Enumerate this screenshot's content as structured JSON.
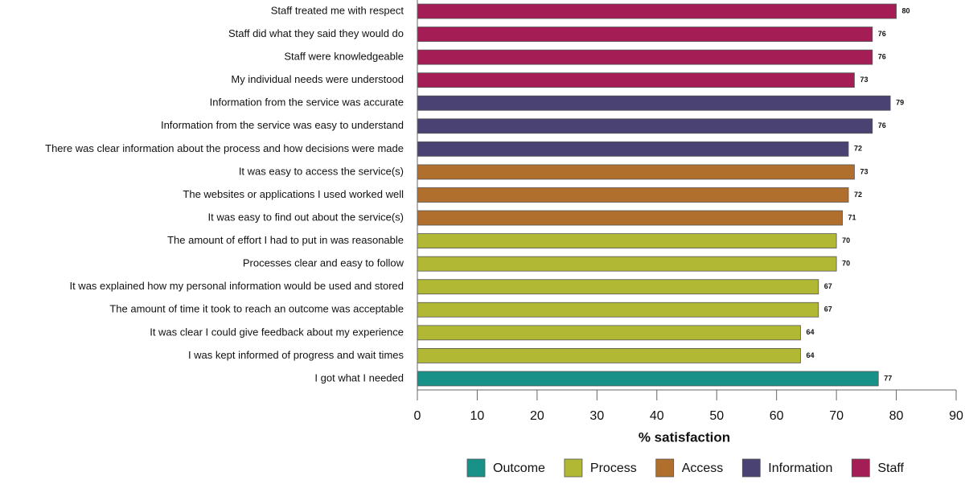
{
  "chart_data": {
    "type": "bar",
    "orientation": "horizontal",
    "categories": [
      "Staff treated me with respect",
      "Staff did what they said they would do",
      "Staff were knowledgeable",
      "My individual needs were understood",
      "Information from the service was accurate",
      "Information from the service was easy to understand",
      "There was clear information about the process and how decisions were made",
      "It was easy to access the service(s)",
      "The websites or applications I used worked well",
      "It was easy to find out about the service(s)",
      "The amount of effort I had to put in was reasonable",
      "Processes clear and easy to follow",
      "It was explained how my personal information would be used and stored",
      "The amount of time it took to reach an outcome was acceptable",
      "It was clear I could give feedback about my experience",
      "I was kept informed of progress and wait times",
      "I got what I needed"
    ],
    "series": [
      {
        "name": "Outcome",
        "color": "#189189",
        "values": [
          null,
          null,
          null,
          null,
          null,
          null,
          null,
          null,
          null,
          null,
          null,
          null,
          null,
          null,
          null,
          null,
          77
        ]
      },
      {
        "name": "Process",
        "color": "#b1b834",
        "values": [
          null,
          null,
          null,
          null,
          null,
          null,
          null,
          null,
          null,
          null,
          70,
          70,
          67,
          67,
          64,
          64,
          null
        ]
      },
      {
        "name": "Access",
        "color": "#b06f2c",
        "values": [
          null,
          null,
          null,
          null,
          null,
          null,
          null,
          73,
          72,
          71,
          null,
          null,
          null,
          null,
          null,
          null,
          null
        ]
      },
      {
        "name": "Information",
        "color": "#4a4272",
        "values": [
          null,
          null,
          null,
          null,
          79,
          76,
          72,
          null,
          null,
          null,
          null,
          null,
          null,
          null,
          null,
          null,
          null
        ]
      },
      {
        "name": "Staff",
        "color": "#a51d55",
        "values": [
          80,
          76,
          76,
          73,
          null,
          null,
          null,
          null,
          null,
          null,
          null,
          null,
          null,
          null,
          null,
          null,
          null
        ]
      }
    ],
    "xlabel": "% satisfaction",
    "xlim": [
      0,
      90
    ],
    "xticks": [
      0,
      10,
      20,
      30,
      40,
      50,
      60,
      70,
      80,
      90
    ],
    "grid": false,
    "legend": "bottom"
  }
}
